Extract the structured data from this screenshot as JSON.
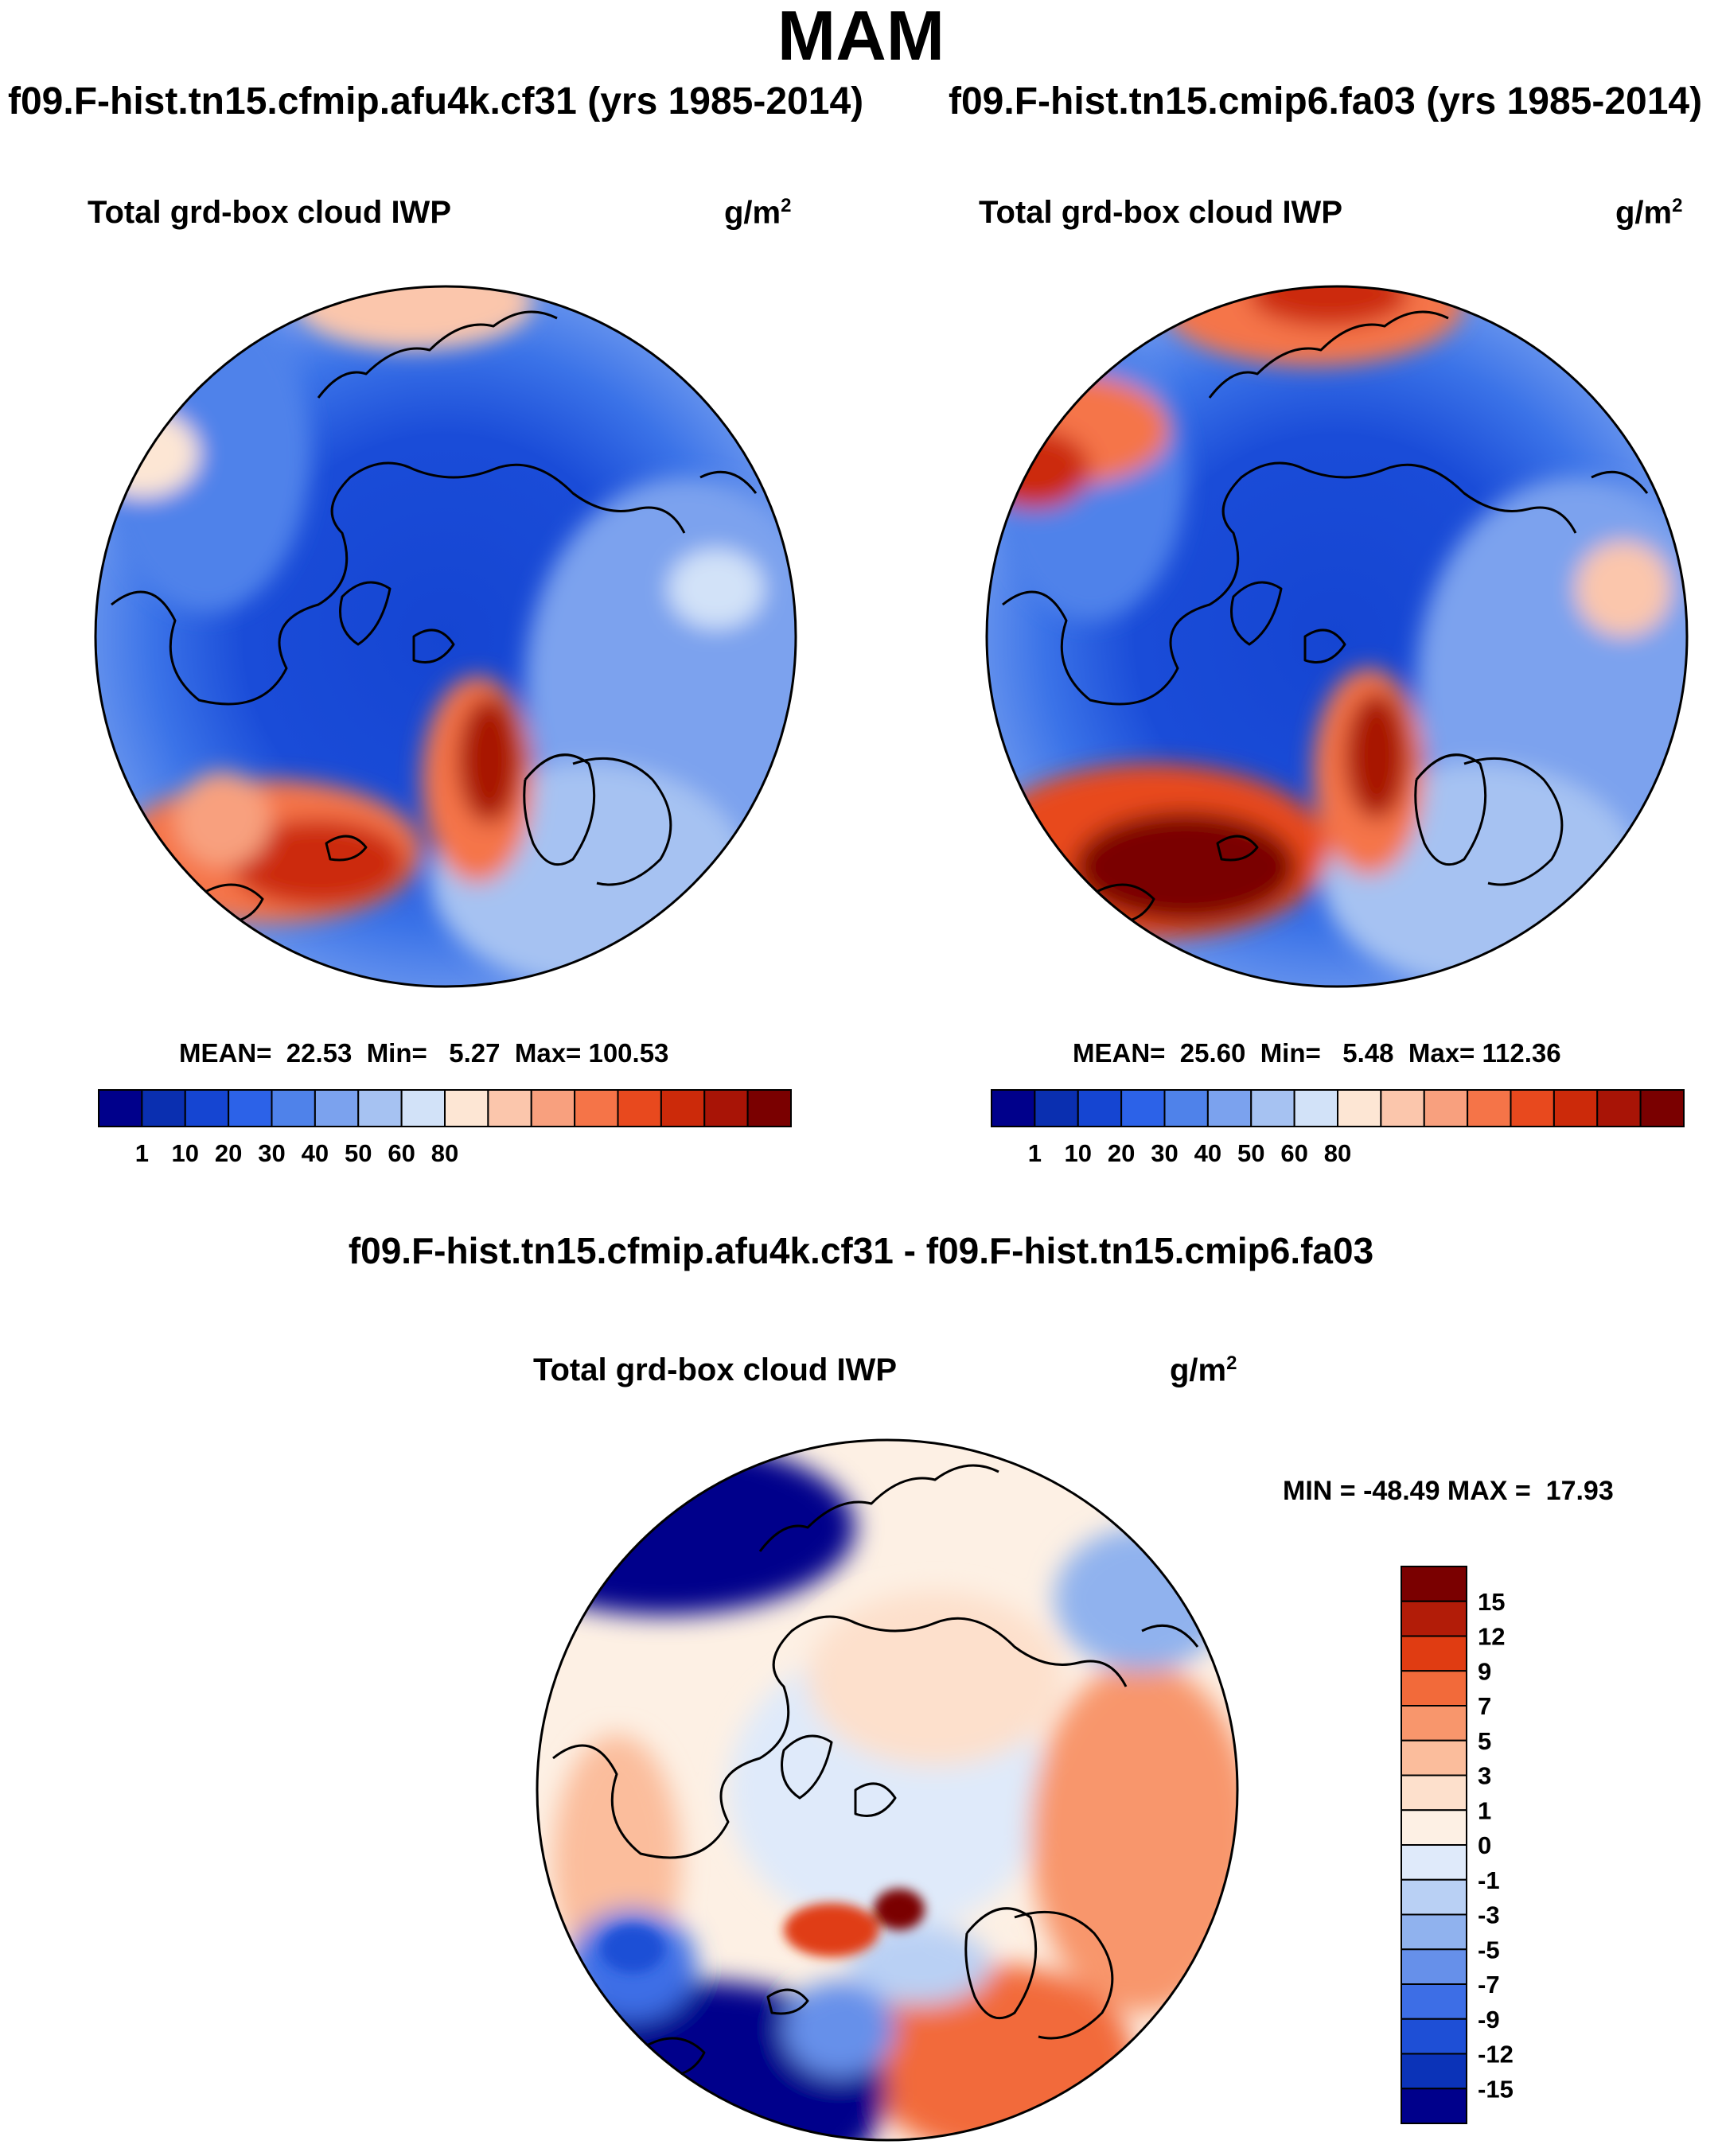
{
  "season": "MAM",
  "panels": [
    {
      "case_title": "f09.F-hist.tn15.cfmip.afu4k.cf31 (yrs 1985-2014)",
      "variable": "Total grd-box cloud IWP",
      "units_base": "g/m",
      "units_exp": "2",
      "stats": "MEAN=  22.53  Min=   5.27  Max= 100.53",
      "features": [
        "icelandic-low-max",
        "norwegian-sea-max",
        "aleutian-weak-max"
      ]
    },
    {
      "case_title": "f09.F-hist.tn15.cmip6.fa03 (yrs 1985-2014)",
      "variable": "Total grd-box cloud IWP",
      "units_base": "g/m",
      "units_exp": "2",
      "stats": "MEAN=  25.60  Min=   5.48  Max= 112.36",
      "features": [
        "icelandic-low-strong-max",
        "norwegian-sea-max",
        "aleutian-strong-max"
      ]
    }
  ],
  "abs_colorbar": {
    "labels": [
      "1",
      "10",
      "20",
      "30",
      "40",
      "50",
      "60",
      "80"
    ],
    "colors": [
      "#00008b",
      "#0a2fb0",
      "#1545d2",
      "#2c62e8",
      "#4f82ea",
      "#7ba2ee",
      "#a6c2f2",
      "#d2e2f8",
      "#fde6d4",
      "#fbc6ac",
      "#f8a07e",
      "#f57448",
      "#e8491e",
      "#cc2a0a",
      "#a81406",
      "#7a0000"
    ]
  },
  "difference": {
    "title": "f09.F-hist.tn15.cfmip.afu4k.cf31 - f09.F-hist.tn15.cmip6.fa03",
    "variable": "Total grd-box cloud IWP",
    "units_base": "g/m",
    "units_exp": "2",
    "minmax": "MIN = -48.49 MAX =  17.93",
    "colorbar": {
      "labels": [
        "15",
        "12",
        "9",
        "7",
        "5",
        "3",
        "1",
        "0",
        "-1",
        "-3",
        "-5",
        "-7",
        "-9",
        "-12",
        "-15"
      ],
      "colors": [
        "#7a0000",
        "#b21c08",
        "#e03c12",
        "#f26a3a",
        "#f8966c",
        "#fbbd9c",
        "#fde0cc",
        "#fdf0e4",
        "#dfeafa",
        "#b9d0f4",
        "#90b2ee",
        "#6690ea",
        "#3d6ee6",
        "#1e4fd6",
        "#0b33b8",
        "#00008b"
      ]
    }
  }
}
